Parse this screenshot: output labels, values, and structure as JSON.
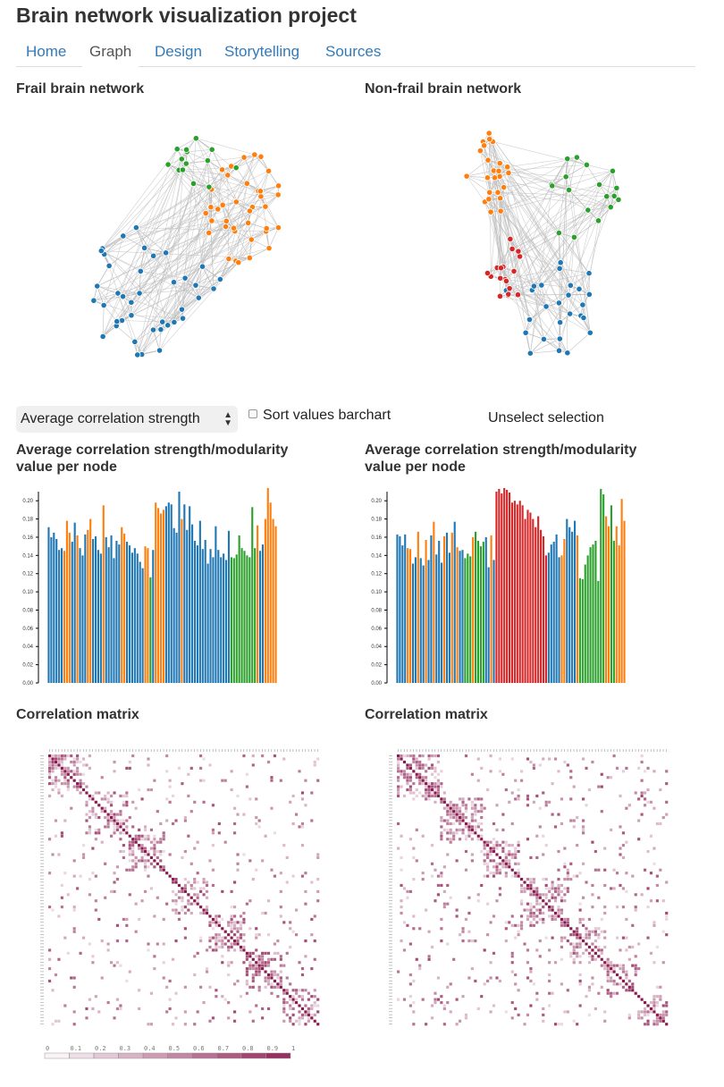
{
  "header": {
    "title": "Brain network visualization project"
  },
  "nav": {
    "tabs": [
      "Home",
      "Graph",
      "Design",
      "Storytelling",
      "Sources"
    ],
    "active": "Graph"
  },
  "network": {
    "frail_title": "Frail brain network",
    "nonfrail_title": "Non-frail brain network"
  },
  "controls": {
    "select_value": "Average correlation strength",
    "sort_label": "Sort values barchart",
    "sort_checked": false,
    "unselect_label": "Unselect selection"
  },
  "barcharts": {
    "title_line1": "Average correlation strength/modularity",
    "title_line2": "value per node"
  },
  "matrix": {
    "title": "Correlation matrix",
    "legend_ticks": [
      "0",
      "0.1",
      "0.2",
      "0.3",
      "0.4",
      "0.5",
      "0.6",
      "0.7",
      "0.8",
      "0.9",
      "1"
    ]
  },
  "colors": {
    "blue": "#1f77b4",
    "orange": "#ff7f0e",
    "green": "#2ca02c",
    "red": "#d62728",
    "matrix": "#8b1a4f",
    "link": "#bbbbbb"
  },
  "chart_data": [
    {
      "type": "bar",
      "chart": "frail",
      "ylim": [
        0,
        0.21
      ],
      "yticks": [
        "0.00",
        "0.02",
        "0.04",
        "0.06",
        "0.08",
        "0.10",
        "0.12",
        "0.14",
        "0.16",
        "0.18",
        "0.20"
      ],
      "values": [
        0.171,
        0.16,
        0.165,
        0.158,
        0.146,
        0.148,
        0.145,
        0.178,
        0.165,
        0.155,
        0.176,
        0.162,
        0.148,
        0.14,
        0.163,
        0.168,
        0.18,
        0.158,
        0.161,
        0.146,
        0.142,
        0.195,
        0.16,
        0.149,
        0.162,
        0.137,
        0.156,
        0.152,
        0.171,
        0.164,
        0.155,
        0.151,
        0.143,
        0.148,
        0.142,
        0.133,
        0.126,
        0.15,
        0.148,
        0.116,
        0.146,
        0.198,
        0.192,
        0.186,
        0.19,
        0.194,
        0.198,
        0.196,
        0.17,
        0.165,
        0.21,
        0.18,
        0.196,
        0.168,
        0.194,
        0.174,
        0.156,
        0.151,
        0.178,
        0.147,
        0.157,
        0.131,
        0.147,
        0.138,
        0.172,
        0.146,
        0.138,
        0.142,
        0.135,
        0.167,
        0.138,
        0.137,
        0.141,
        0.162,
        0.148,
        0.145,
        0.14,
        0.138,
        0.193,
        0.148,
        0.173,
        0.145,
        0.152,
        0.18,
        0.214,
        0.198,
        0.18,
        0.172
      ],
      "groups": [
        "b",
        "b",
        "b",
        "b",
        "b",
        "b",
        "o",
        "o",
        "o",
        "b",
        "b",
        "o",
        "b",
        "b",
        "b",
        "o",
        "o",
        "b",
        "b",
        "b",
        "b",
        "o",
        "b",
        "b",
        "b",
        "b",
        "b",
        "b",
        "o",
        "o",
        "b",
        "b",
        "b",
        "b",
        "b",
        "b",
        "b",
        "o",
        "o",
        "g",
        "b",
        "o",
        "o",
        "o",
        "o",
        "b",
        "b",
        "b",
        "b",
        "b",
        "b",
        "o",
        "b",
        "b",
        "b",
        "b",
        "b",
        "b",
        "b",
        "b",
        "b",
        "b",
        "b",
        "b",
        "b",
        "b",
        "b",
        "b",
        "b",
        "b",
        "g",
        "g",
        "g",
        "g",
        "g",
        "g",
        "g",
        "g",
        "g",
        "g",
        "o",
        "b",
        "b",
        "o",
        "o",
        "o",
        "o",
        "o"
      ]
    },
    {
      "type": "bar",
      "chart": "nonfrail",
      "ylim": [
        0,
        0.21
      ],
      "yticks": [
        "0.00",
        "0.02",
        "0.04",
        "0.06",
        "0.08",
        "0.10",
        "0.12",
        "0.14",
        "0.16",
        "0.18",
        "0.20"
      ],
      "values": [
        0.163,
        0.161,
        0.151,
        0.163,
        0.148,
        0.147,
        0.131,
        0.138,
        0.166,
        0.137,
        0.129,
        0.157,
        0.135,
        0.162,
        0.177,
        0.141,
        0.156,
        0.132,
        0.161,
        0.165,
        0.143,
        0.165,
        0.177,
        0.149,
        0.145,
        0.146,
        0.137,
        0.142,
        0.139,
        0.16,
        0.166,
        0.156,
        0.15,
        0.155,
        0.16,
        0.127,
        0.162,
        0.135,
        0.21,
        0.213,
        0.208,
        0.214,
        0.212,
        0.209,
        0.198,
        0.2,
        0.196,
        0.2,
        0.195,
        0.18,
        0.19,
        0.187,
        0.18,
        0.171,
        0.183,
        0.168,
        0.161,
        0.14,
        0.143,
        0.152,
        0.155,
        0.163,
        0.138,
        0.14,
        0.158,
        0.18,
        0.171,
        0.166,
        0.178,
        0.162,
        0.115,
        0.114,
        0.13,
        0.14,
        0.149,
        0.152,
        0.156,
        0.112,
        0.213,
        0.207,
        0.183,
        0.172,
        0.195,
        0.156,
        0.172,
        0.151,
        0.202,
        0.178
      ],
      "groups": [
        "b",
        "b",
        "b",
        "b",
        "o",
        "o",
        "b",
        "b",
        "o",
        "b",
        "b",
        "o",
        "b",
        "b",
        "o",
        "b",
        "b",
        "b",
        "o",
        "b",
        "b",
        "o",
        "b",
        "o",
        "b",
        "b",
        "g",
        "g",
        "g",
        "o",
        "g",
        "g",
        "g",
        "g",
        "b",
        "b",
        "o",
        "b",
        "r",
        "r",
        "r",
        "r",
        "r",
        "r",
        "r",
        "r",
        "r",
        "r",
        "r",
        "r",
        "r",
        "r",
        "r",
        "r",
        "r",
        "r",
        "r",
        "r",
        "b",
        "b",
        "b",
        "b",
        "b",
        "o",
        "o",
        "b",
        "b",
        "b",
        "b",
        "o",
        "g",
        "g",
        "g",
        "g",
        "g",
        "g",
        "g",
        "g",
        "g",
        "g",
        "o",
        "o",
        "g",
        "g",
        "o",
        "o",
        "o",
        "o"
      ]
    }
  ]
}
